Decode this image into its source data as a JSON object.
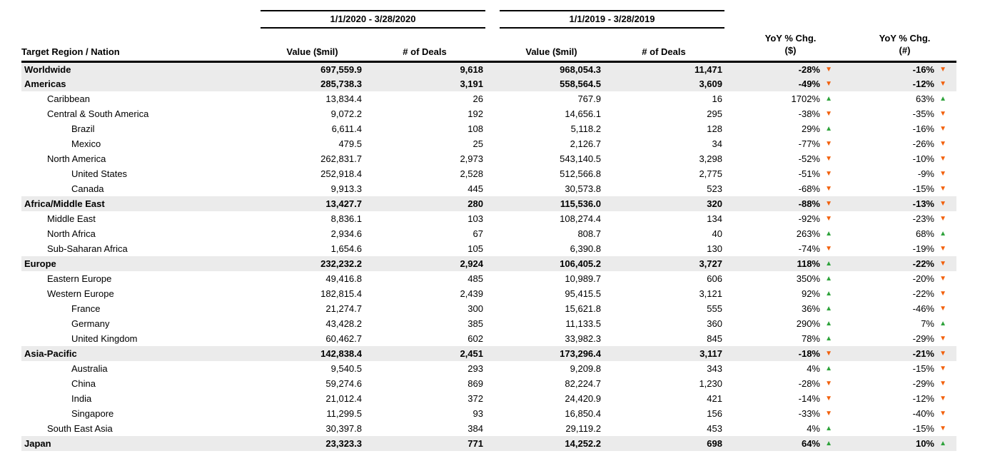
{
  "colors": {
    "up_arrow": "#2fa33c",
    "down_arrow": "#f2600c",
    "band_background": "#ebebeb"
  },
  "icons": {
    "up": "▲",
    "down": "▼"
  },
  "chart_data": {
    "type": "table",
    "header": {
      "region_column": "Target Region / Nation",
      "period_groups": [
        {
          "label": "1/1/2020 - 3/28/2020",
          "columns": [
            "Value ($mil)",
            "# of Deals"
          ]
        },
        {
          "label": "1/1/2019 - 3/28/2019",
          "columns": [
            "Value ($mil)",
            "# of Deals"
          ]
        }
      ],
      "yoy_columns": [
        {
          "line1": "YoY % Chg.",
          "line2": "($)"
        },
        {
          "line1": "YoY % Chg.",
          "line2": "(#)"
        }
      ]
    },
    "rows": [
      {
        "region": "Worldwide",
        "indent": 0,
        "bold": true,
        "cells": [
          "697,559.9",
          "9,618",
          "968,054.3",
          "11,471"
        ],
        "yoy": [
          {
            "pct": "-28%",
            "dir": "down"
          },
          {
            "pct": "-16%",
            "dir": "down"
          }
        ]
      },
      {
        "region": "Americas",
        "indent": 0,
        "bold": true,
        "cells": [
          "285,738.3",
          "3,191",
          "558,564.5",
          "3,609"
        ],
        "yoy": [
          {
            "pct": "-49%",
            "dir": "down"
          },
          {
            "pct": "-12%",
            "dir": "down"
          }
        ]
      },
      {
        "region": "Caribbean",
        "indent": 1,
        "bold": false,
        "cells": [
          "13,834.4",
          "26",
          "767.9",
          "16"
        ],
        "yoy": [
          {
            "pct": "1702%",
            "dir": "up"
          },
          {
            "pct": "63%",
            "dir": "up"
          }
        ]
      },
      {
        "region": "Central & South America",
        "indent": 1,
        "bold": false,
        "cells": [
          "9,072.2",
          "192",
          "14,656.1",
          "295"
        ],
        "yoy": [
          {
            "pct": "-38%",
            "dir": "down"
          },
          {
            "pct": "-35%",
            "dir": "down"
          }
        ]
      },
      {
        "region": "Brazil",
        "indent": 2,
        "bold": false,
        "cells": [
          "6,611.4",
          "108",
          "5,118.2",
          "128"
        ],
        "yoy": [
          {
            "pct": "29%",
            "dir": "up"
          },
          {
            "pct": "-16%",
            "dir": "down"
          }
        ]
      },
      {
        "region": "Mexico",
        "indent": 2,
        "bold": false,
        "cells": [
          "479.5",
          "25",
          "2,126.7",
          "34"
        ],
        "yoy": [
          {
            "pct": "-77%",
            "dir": "down"
          },
          {
            "pct": "-26%",
            "dir": "down"
          }
        ]
      },
      {
        "region": "North America",
        "indent": 1,
        "bold": false,
        "cells": [
          "262,831.7",
          "2,973",
          "543,140.5",
          "3,298"
        ],
        "yoy": [
          {
            "pct": "-52%",
            "dir": "down"
          },
          {
            "pct": "-10%",
            "dir": "down"
          }
        ]
      },
      {
        "region": "United States",
        "indent": 2,
        "bold": false,
        "cells": [
          "252,918.4",
          "2,528",
          "512,566.8",
          "2,775"
        ],
        "yoy": [
          {
            "pct": "-51%",
            "dir": "down"
          },
          {
            "pct": "-9%",
            "dir": "down"
          }
        ]
      },
      {
        "region": "Canada",
        "indent": 2,
        "bold": false,
        "cells": [
          "9,913.3",
          "445",
          "30,573.8",
          "523"
        ],
        "yoy": [
          {
            "pct": "-68%",
            "dir": "down"
          },
          {
            "pct": "-15%",
            "dir": "down"
          }
        ]
      },
      {
        "region": "Africa/Middle East",
        "indent": 0,
        "bold": true,
        "cells": [
          "13,427.7",
          "280",
          "115,536.0",
          "320"
        ],
        "yoy": [
          {
            "pct": "-88%",
            "dir": "down"
          },
          {
            "pct": "-13%",
            "dir": "down"
          }
        ]
      },
      {
        "region": "Middle East",
        "indent": 1,
        "bold": false,
        "cells": [
          "8,836.1",
          "103",
          "108,274.4",
          "134"
        ],
        "yoy": [
          {
            "pct": "-92%",
            "dir": "down"
          },
          {
            "pct": "-23%",
            "dir": "down"
          }
        ]
      },
      {
        "region": "North Africa",
        "indent": 1,
        "bold": false,
        "cells": [
          "2,934.6",
          "67",
          "808.7",
          "40"
        ],
        "yoy": [
          {
            "pct": "263%",
            "dir": "up"
          },
          {
            "pct": "68%",
            "dir": "up"
          }
        ]
      },
      {
        "region": "Sub-Saharan Africa",
        "indent": 1,
        "bold": false,
        "cells": [
          "1,654.6",
          "105",
          "6,390.8",
          "130"
        ],
        "yoy": [
          {
            "pct": "-74%",
            "dir": "down"
          },
          {
            "pct": "-19%",
            "dir": "down"
          }
        ]
      },
      {
        "region": "Europe",
        "indent": 0,
        "bold": true,
        "cells": [
          "232,232.2",
          "2,924",
          "106,405.2",
          "3,727"
        ],
        "yoy": [
          {
            "pct": "118%",
            "dir": "up"
          },
          {
            "pct": "-22%",
            "dir": "down"
          }
        ]
      },
      {
        "region": "Eastern Europe",
        "indent": 1,
        "bold": false,
        "cells": [
          "49,416.8",
          "485",
          "10,989.7",
          "606"
        ],
        "yoy": [
          {
            "pct": "350%",
            "dir": "up"
          },
          {
            "pct": "-20%",
            "dir": "down"
          }
        ]
      },
      {
        "region": "Western Europe",
        "indent": 1,
        "bold": false,
        "cells": [
          "182,815.4",
          "2,439",
          "95,415.5",
          "3,121"
        ],
        "yoy": [
          {
            "pct": "92%",
            "dir": "up"
          },
          {
            "pct": "-22%",
            "dir": "down"
          }
        ]
      },
      {
        "region": "France",
        "indent": 2,
        "bold": false,
        "cells": [
          "21,274.7",
          "300",
          "15,621.8",
          "555"
        ],
        "yoy": [
          {
            "pct": "36%",
            "dir": "up"
          },
          {
            "pct": "-46%",
            "dir": "down"
          }
        ]
      },
      {
        "region": "Germany",
        "indent": 2,
        "bold": false,
        "cells": [
          "43,428.2",
          "385",
          "11,133.5",
          "360"
        ],
        "yoy": [
          {
            "pct": "290%",
            "dir": "up"
          },
          {
            "pct": "7%",
            "dir": "up"
          }
        ]
      },
      {
        "region": "United Kingdom",
        "indent": 2,
        "bold": false,
        "cells": [
          "60,462.7",
          "602",
          "33,982.3",
          "845"
        ],
        "yoy": [
          {
            "pct": "78%",
            "dir": "up"
          },
          {
            "pct": "-29%",
            "dir": "down"
          }
        ]
      },
      {
        "region": "Asia-Pacific",
        "indent": 0,
        "bold": true,
        "cells": [
          "142,838.4",
          "2,451",
          "173,296.4",
          "3,117"
        ],
        "yoy": [
          {
            "pct": "-18%",
            "dir": "down"
          },
          {
            "pct": "-21%",
            "dir": "down"
          }
        ]
      },
      {
        "region": "Australia",
        "indent": 2,
        "bold": false,
        "cells": [
          "9,540.5",
          "293",
          "9,209.8",
          "343"
        ],
        "yoy": [
          {
            "pct": "4%",
            "dir": "up"
          },
          {
            "pct": "-15%",
            "dir": "down"
          }
        ]
      },
      {
        "region": "China",
        "indent": 2,
        "bold": false,
        "cells": [
          "59,274.6",
          "869",
          "82,224.7",
          "1,230"
        ],
        "yoy": [
          {
            "pct": "-28%",
            "dir": "down"
          },
          {
            "pct": "-29%",
            "dir": "down"
          }
        ]
      },
      {
        "region": "India",
        "indent": 2,
        "bold": false,
        "cells": [
          "21,012.4",
          "372",
          "24,420.9",
          "421"
        ],
        "yoy": [
          {
            "pct": "-14%",
            "dir": "down"
          },
          {
            "pct": "-12%",
            "dir": "down"
          }
        ]
      },
      {
        "region": "Singapore",
        "indent": 2,
        "bold": false,
        "cells": [
          "11,299.5",
          "93",
          "16,850.4",
          "156"
        ],
        "yoy": [
          {
            "pct": "-33%",
            "dir": "down"
          },
          {
            "pct": "-40%",
            "dir": "down"
          }
        ]
      },
      {
        "region": "South East Asia",
        "indent": 1,
        "bold": false,
        "cells": [
          "30,397.8",
          "384",
          "29,119.2",
          "453"
        ],
        "yoy": [
          {
            "pct": "4%",
            "dir": "up"
          },
          {
            "pct": "-15%",
            "dir": "down"
          }
        ]
      },
      {
        "region": "Japan",
        "indent": 0,
        "bold": true,
        "cells": [
          "23,323.3",
          "771",
          "14,252.2",
          "698"
        ],
        "yoy": [
          {
            "pct": "64%",
            "dir": "up"
          },
          {
            "pct": "10%",
            "dir": "up"
          }
        ]
      }
    ]
  }
}
